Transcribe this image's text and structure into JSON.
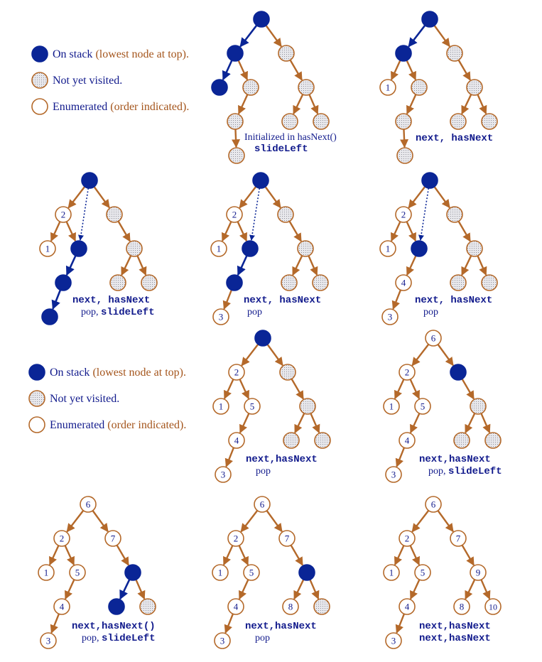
{
  "colors": {
    "stack": "#0a2596",
    "edge": "#b4692a",
    "outline": "#b4692a",
    "unvisited_fill": "#e6e6ea",
    "text_blue": "#111a8c",
    "text_brown": "#a4551c"
  },
  "legend": [
    {
      "kind": "stack",
      "text": "On stack",
      "note": "(lowest node at top)."
    },
    {
      "kind": "unvisited",
      "text": "Not yet visited.",
      "note": ""
    },
    {
      "kind": "enum",
      "text": "Enumerated",
      "note": "(order indicated)."
    }
  ],
  "panels": [
    {
      "id": "p1",
      "states": [
        "S",
        "S",
        "U",
        "S",
        "U",
        "U",
        "U",
        "U",
        "U",
        "U",
        "U"
      ],
      "labels": [
        "",
        "",
        "",
        "",
        "",
        "",
        "",
        "",
        "",
        "",
        ""
      ],
      "captions": [
        "Initialized in hasNext()",
        "slideLeft"
      ]
    },
    {
      "id": "p2",
      "states": [
        "S",
        "S",
        "U",
        "E",
        "U",
        "U",
        "U",
        "U",
        "U",
        "U",
        "U"
      ],
      "labels": [
        "",
        "",
        "",
        "1",
        "",
        "",
        "",
        "",
        "",
        "",
        ""
      ],
      "captions": [
        "next, hasNext"
      ]
    },
    {
      "id": "p3",
      "states": [
        "S",
        "E",
        "U",
        "E",
        "S",
        "U",
        "S",
        "S",
        "U",
        "U",
        "U"
      ],
      "labels": [
        "",
        "2",
        "",
        "1",
        "",
        "",
        "",
        "",
        "",
        "",
        ""
      ],
      "captions": [
        "next, hasNext",
        "pop, slideLeft"
      ]
    },
    {
      "id": "p4",
      "states": [
        "S",
        "E",
        "U",
        "E",
        "S",
        "U",
        "S",
        "E",
        "U",
        "U",
        "U"
      ],
      "labels": [
        "",
        "2",
        "",
        "1",
        "",
        "",
        "",
        "3",
        "",
        "",
        ""
      ],
      "captions": [
        "next, hasNext",
        "pop"
      ]
    },
    {
      "id": "p5",
      "states": [
        "S",
        "E",
        "U",
        "E",
        "S",
        "U",
        "E",
        "E",
        "U",
        "U",
        "U"
      ],
      "labels": [
        "",
        "2",
        "",
        "1",
        "",
        "",
        "4",
        "3",
        "",
        "",
        ""
      ],
      "captions": [
        "next, hasNext",
        "pop"
      ]
    },
    {
      "id": "p6",
      "states": [
        "S",
        "E",
        "U",
        "E",
        "E",
        "U",
        "E",
        "E",
        "U",
        "U",
        "U"
      ],
      "labels": [
        "",
        "2",
        "",
        "1",
        "5",
        "",
        "4",
        "3",
        "",
        "",
        ""
      ],
      "captions": [
        "next,hasNext",
        "pop"
      ]
    },
    {
      "id": "p7",
      "states": [
        "E",
        "E",
        "S",
        "E",
        "E",
        "U",
        "E",
        "E",
        "U",
        "U",
        "U"
      ],
      "labels": [
        "6",
        "2",
        "",
        "1",
        "5",
        "",
        "4",
        "3",
        "",
        "",
        ""
      ],
      "captions": [
        "next,hasNext",
        "pop, slideLeft"
      ]
    },
    {
      "id": "p8",
      "states": [
        "E",
        "E",
        "E",
        "E",
        "E",
        "S",
        "E",
        "E",
        "S",
        "U",
        "U"
      ],
      "labels": [
        "6",
        "2",
        "7",
        "1",
        "5",
        "",
        "4",
        "3",
        "",
        "",
        ""
      ],
      "captions": [
        "next,hasNext()",
        "pop, slideLeft"
      ]
    },
    {
      "id": "p9",
      "states": [
        "E",
        "E",
        "E",
        "E",
        "E",
        "S",
        "E",
        "E",
        "E",
        "U",
        "U"
      ],
      "labels": [
        "6",
        "2",
        "7",
        "1",
        "5",
        "",
        "4",
        "3",
        "8",
        "",
        ""
      ],
      "captions": [
        "next,hasNext",
        "pop"
      ]
    },
    {
      "id": "p10",
      "states": [
        "E",
        "E",
        "E",
        "E",
        "E",
        "E",
        "E",
        "E",
        "E",
        "E",
        "U"
      ],
      "labels": [
        "6",
        "2",
        "7",
        "1",
        "5",
        "9",
        "4",
        "3",
        "8",
        "10",
        ""
      ],
      "captions": [
        "next,hasNext",
        "next,hasNext"
      ]
    }
  ]
}
